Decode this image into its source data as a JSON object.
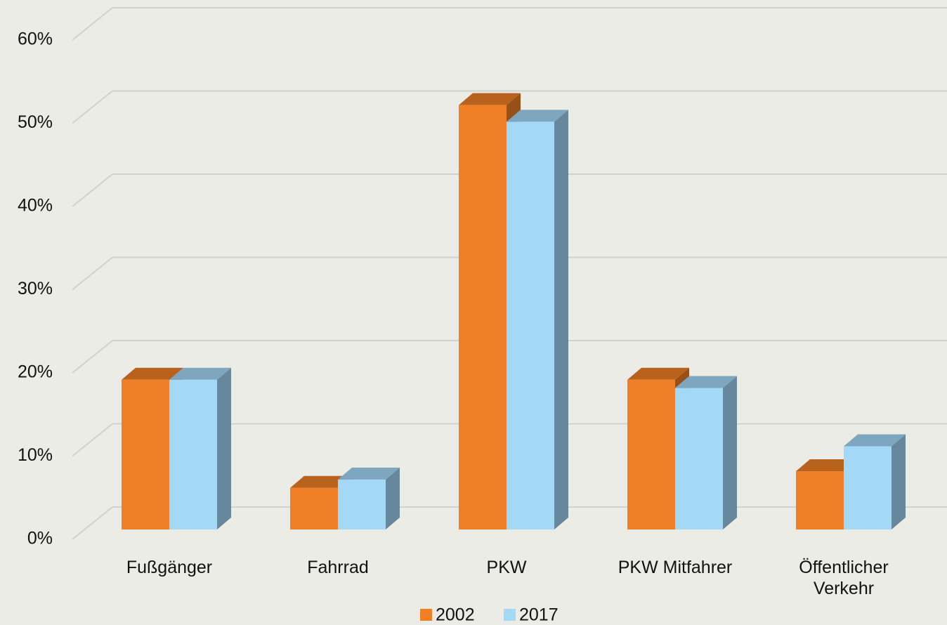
{
  "chart_data": {
    "type": "bar3d",
    "categories": [
      "Fußgänger",
      "Fahrrad",
      "PKW",
      "PKW Mitfahrer",
      "Öffentlicher Verkehr"
    ],
    "series": [
      {
        "name": "2002",
        "color": "#f07f26",
        "values": [
          18,
          5,
          51,
          18,
          7
        ]
      },
      {
        "name": "2017",
        "color": "#a3d8f7",
        "values": [
          18,
          6,
          49,
          17,
          10
        ]
      }
    ],
    "ylim": [
      0,
      60
    ],
    "yticks": [
      {
        "value": 0,
        "label": "0%"
      },
      {
        "value": 10,
        "label": "10%"
      },
      {
        "value": 20,
        "label": "20%"
      },
      {
        "value": 30,
        "label": "30%"
      },
      {
        "value": 40,
        "label": "40%"
      },
      {
        "value": 50,
        "label": "50%"
      },
      {
        "value": 60,
        "label": "60%"
      }
    ],
    "grid": true,
    "legend": "bottom"
  }
}
